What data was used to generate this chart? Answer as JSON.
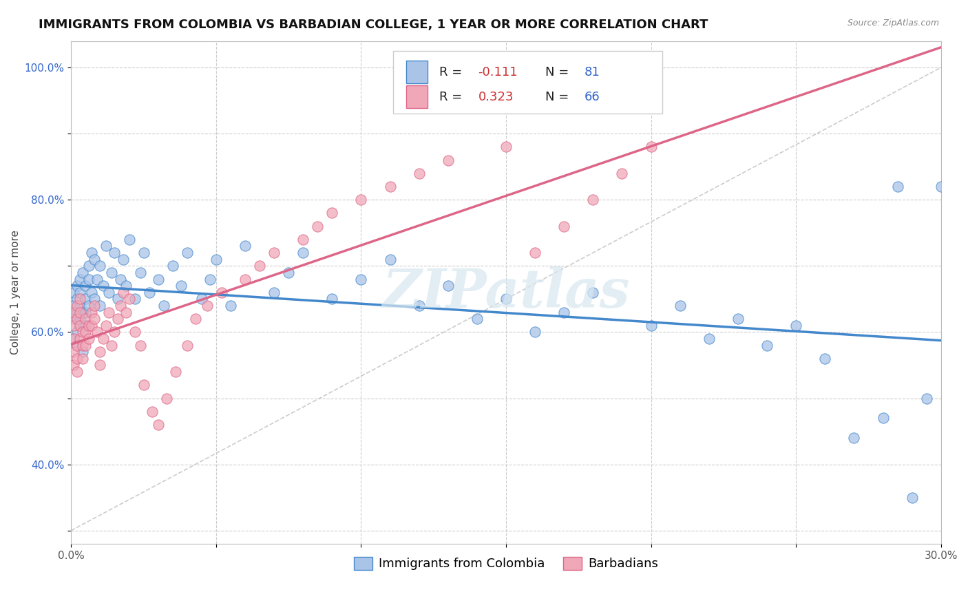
{
  "title": "IMMIGRANTS FROM COLOMBIA VS BARBADIAN COLLEGE, 1 YEAR OR MORE CORRELATION CHART",
  "source_text": "Source: ZipAtlas.com",
  "ylabel": "College, 1 year or more",
  "xlim": [
    0.0,
    0.3
  ],
  "ylim": [
    0.28,
    1.04
  ],
  "xticks": [
    0.0,
    0.05,
    0.1,
    0.15,
    0.2,
    0.25,
    0.3
  ],
  "xticklabels": [
    "0.0%",
    "",
    "",
    "",
    "",
    "",
    "30.0%"
  ],
  "yticks": [
    0.3,
    0.4,
    0.5,
    0.6,
    0.7,
    0.8,
    0.9,
    1.0
  ],
  "yticklabels": [
    "",
    "40.0%",
    "",
    "60.0%",
    "",
    "80.0%",
    "",
    "100.0%"
  ],
  "series1_color": "#aac4e8",
  "series2_color": "#f0a8b8",
  "series1_label": "Immigrants from Colombia",
  "series2_label": "Barbadians",
  "R1": -0.111,
  "N1": 81,
  "R2": 0.323,
  "N2": 66,
  "trend1_color": "#4488cc",
  "trend2_color": "#dd6688",
  "diag_color": "#cccccc",
  "watermark": "ZIPatlas",
  "legend_N_color": "#3366cc",
  "legend_R1_color": "#cc3333",
  "legend_R2_color": "#cc3333",
  "series1_x": [
    0.001,
    0.001,
    0.001,
    0.001,
    0.002,
    0.002,
    0.002,
    0.002,
    0.002,
    0.003,
    0.003,
    0.003,
    0.003,
    0.003,
    0.004,
    0.004,
    0.004,
    0.005,
    0.005,
    0.005,
    0.005,
    0.006,
    0.006,
    0.006,
    0.007,
    0.007,
    0.008,
    0.008,
    0.009,
    0.01,
    0.01,
    0.011,
    0.012,
    0.013,
    0.014,
    0.015,
    0.016,
    0.017,
    0.018,
    0.019,
    0.02,
    0.022,
    0.024,
    0.025,
    0.027,
    0.03,
    0.032,
    0.035,
    0.038,
    0.04,
    0.045,
    0.048,
    0.05,
    0.055,
    0.06,
    0.07,
    0.075,
    0.08,
    0.09,
    0.1,
    0.11,
    0.12,
    0.13,
    0.14,
    0.15,
    0.16,
    0.17,
    0.18,
    0.2,
    0.21,
    0.22,
    0.23,
    0.24,
    0.25,
    0.26,
    0.27,
    0.28,
    0.285,
    0.29,
    0.295,
    0.3
  ],
  "series1_y": [
    0.62,
    0.64,
    0.66,
    0.59,
    0.63,
    0.65,
    0.6,
    0.67,
    0.58,
    0.64,
    0.62,
    0.68,
    0.61,
    0.66,
    0.63,
    0.69,
    0.57,
    0.65,
    0.63,
    0.67,
    0.61,
    0.7,
    0.64,
    0.68,
    0.66,
    0.72,
    0.65,
    0.71,
    0.68,
    0.64,
    0.7,
    0.67,
    0.73,
    0.66,
    0.69,
    0.72,
    0.65,
    0.68,
    0.71,
    0.67,
    0.74,
    0.65,
    0.69,
    0.72,
    0.66,
    0.68,
    0.64,
    0.7,
    0.67,
    0.72,
    0.65,
    0.68,
    0.71,
    0.64,
    0.73,
    0.66,
    0.69,
    0.72,
    0.65,
    0.68,
    0.71,
    0.64,
    0.67,
    0.62,
    0.65,
    0.6,
    0.63,
    0.66,
    0.61,
    0.64,
    0.59,
    0.62,
    0.58,
    0.61,
    0.56,
    0.44,
    0.47,
    0.82,
    0.35,
    0.5,
    0.82
  ],
  "series2_x": [
    0.001,
    0.001,
    0.001,
    0.001,
    0.001,
    0.002,
    0.002,
    0.002,
    0.002,
    0.002,
    0.003,
    0.003,
    0.003,
    0.003,
    0.004,
    0.004,
    0.004,
    0.005,
    0.005,
    0.005,
    0.006,
    0.006,
    0.007,
    0.007,
    0.008,
    0.008,
    0.009,
    0.01,
    0.01,
    0.011,
    0.012,
    0.013,
    0.014,
    0.015,
    0.016,
    0.017,
    0.018,
    0.019,
    0.02,
    0.022,
    0.024,
    0.025,
    0.028,
    0.03,
    0.033,
    0.036,
    0.04,
    0.043,
    0.047,
    0.052,
    0.06,
    0.065,
    0.07,
    0.08,
    0.085,
    0.09,
    0.1,
    0.11,
    0.12,
    0.13,
    0.15,
    0.16,
    0.17,
    0.18,
    0.19,
    0.2
  ],
  "series2_y": [
    0.63,
    0.61,
    0.59,
    0.57,
    0.55,
    0.64,
    0.62,
    0.58,
    0.56,
    0.54,
    0.65,
    0.63,
    0.61,
    0.59,
    0.6,
    0.58,
    0.56,
    0.62,
    0.6,
    0.58,
    0.61,
    0.59,
    0.63,
    0.61,
    0.64,
    0.62,
    0.6,
    0.57,
    0.55,
    0.59,
    0.61,
    0.63,
    0.58,
    0.6,
    0.62,
    0.64,
    0.66,
    0.63,
    0.65,
    0.6,
    0.58,
    0.52,
    0.48,
    0.46,
    0.5,
    0.54,
    0.58,
    0.62,
    0.64,
    0.66,
    0.68,
    0.7,
    0.72,
    0.74,
    0.76,
    0.78,
    0.8,
    0.82,
    0.84,
    0.86,
    0.88,
    0.72,
    0.76,
    0.8,
    0.84,
    0.88
  ],
  "title_fontsize": 13,
  "axis_label_fontsize": 11,
  "tick_fontsize": 11,
  "legend_fontsize": 13
}
